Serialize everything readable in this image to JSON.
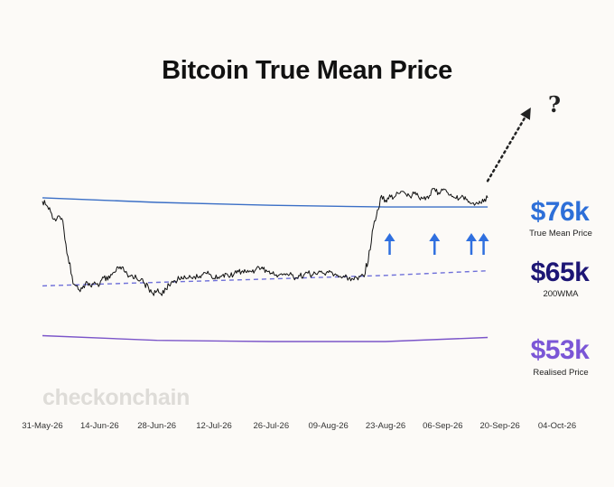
{
  "title": "Bitcoin True Mean Price",
  "watermark": "checkonchain",
  "colors": {
    "background": "#fcfaf7",
    "price": "#111111",
    "true_mean": "#3b6fc6",
    "wma200": "#6f70d9",
    "realised": "#7b55c9",
    "arrows": "#2f6fdf",
    "label_true_mean": "#2d6fd8",
    "label_wma": "#1d1675",
    "label_realised": "#7b56d6"
  },
  "labels": {
    "true_mean_value": "$76k",
    "true_mean_name": "True Mean Price",
    "wma_value": "$65k",
    "wma_name": "200WMA",
    "realised_value": "$53k",
    "realised_name": "Realised Price",
    "question": "?"
  },
  "x_ticks": [
    "31-May-26",
    "14-Jun-26",
    "28-Jun-26",
    "12-Jul-26",
    "26-Jul-26",
    "09-Aug-26",
    "23-Aug-26",
    "06-Sep-26",
    "20-Sep-26",
    "04-Oct-26"
  ],
  "chart_data": {
    "type": "line",
    "title": "Bitcoin True Mean Price",
    "x_range": [
      "2026-05-31",
      "2026-10-04"
    ],
    "y_range": [
      45000,
      98000
    ],
    "grid": false,
    "series": [
      {
        "name": "True Mean Price",
        "points": [
          [
            "2026-05-31",
            77600
          ],
          [
            "2026-06-28",
            76800
          ],
          [
            "2026-07-26",
            76300
          ],
          [
            "2026-08-23",
            76000
          ],
          [
            "2026-09-17",
            76000
          ]
        ]
      },
      {
        "name": "200WMA",
        "style": "dashed",
        "points": [
          [
            "2026-05-31",
            62400
          ],
          [
            "2026-06-28",
            63000
          ],
          [
            "2026-07-26",
            63600
          ],
          [
            "2026-08-23",
            64200
          ],
          [
            "2026-09-17",
            65000
          ]
        ]
      },
      {
        "name": "Realised Price",
        "points": [
          [
            "2026-05-31",
            53800
          ],
          [
            "2026-06-28",
            53000
          ],
          [
            "2026-07-26",
            52800
          ],
          [
            "2026-08-23",
            52800
          ],
          [
            "2026-09-17",
            53500
          ]
        ]
      },
      {
        "name": "Price",
        "points": [
          [
            "2026-05-31",
            77000
          ],
          [
            "2026-06-01",
            76300
          ],
          [
            "2026-06-02",
            75200
          ],
          [
            "2026-06-03",
            74000
          ],
          [
            "2026-06-04",
            74500
          ],
          [
            "2026-06-05",
            73600
          ],
          [
            "2026-06-06",
            68000
          ],
          [
            "2026-06-07",
            64500
          ],
          [
            "2026-06-08",
            62500
          ],
          [
            "2026-06-09",
            61700
          ],
          [
            "2026-06-10",
            62400
          ],
          [
            "2026-06-11",
            63000
          ],
          [
            "2026-06-12",
            62200
          ],
          [
            "2026-06-13",
            62800
          ],
          [
            "2026-06-14",
            62600
          ],
          [
            "2026-06-15",
            63800
          ],
          [
            "2026-06-16",
            63400
          ],
          [
            "2026-06-17",
            64300
          ],
          [
            "2026-06-18",
            64900
          ],
          [
            "2026-06-19",
            65700
          ],
          [
            "2026-06-20",
            64900
          ],
          [
            "2026-06-21",
            63900
          ],
          [
            "2026-06-22",
            64200
          ],
          [
            "2026-06-23",
            63800
          ],
          [
            "2026-06-24",
            63400
          ],
          [
            "2026-06-25",
            62800
          ],
          [
            "2026-06-26",
            62000
          ],
          [
            "2026-06-27",
            61100
          ],
          [
            "2026-06-28",
            61500
          ],
          [
            "2026-06-29",
            61000
          ],
          [
            "2026-06-30",
            62000
          ],
          [
            "2026-07-01",
            62500
          ],
          [
            "2026-07-02",
            63000
          ],
          [
            "2026-07-03",
            63300
          ],
          [
            "2026-07-04",
            64000
          ],
          [
            "2026-07-05",
            63800
          ],
          [
            "2026-07-06",
            64200
          ],
          [
            "2026-07-07",
            64000
          ],
          [
            "2026-07-08",
            63900
          ],
          [
            "2026-07-09",
            64300
          ],
          [
            "2026-07-10",
            64600
          ],
          [
            "2026-07-11",
            64400
          ],
          [
            "2026-07-12",
            63700
          ],
          [
            "2026-07-13",
            63900
          ],
          [
            "2026-07-14",
            64200
          ],
          [
            "2026-07-15",
            64500
          ],
          [
            "2026-07-16",
            64100
          ],
          [
            "2026-07-17",
            64600
          ],
          [
            "2026-07-18",
            64800
          ],
          [
            "2026-07-19",
            65000
          ],
          [
            "2026-07-20",
            64700
          ],
          [
            "2026-07-21",
            64900
          ],
          [
            "2026-07-22",
            65000
          ],
          [
            "2026-07-23",
            65600
          ],
          [
            "2026-07-24",
            65300
          ],
          [
            "2026-07-25",
            64900
          ],
          [
            "2026-07-26",
            64600
          ],
          [
            "2026-07-27",
            64200
          ],
          [
            "2026-07-28",
            64300
          ],
          [
            "2026-07-29",
            64400
          ],
          [
            "2026-07-30",
            64400
          ],
          [
            "2026-07-31",
            64300
          ],
          [
            "2026-08-01",
            63800
          ],
          [
            "2026-08-02",
            64100
          ],
          [
            "2026-08-03",
            64300
          ],
          [
            "2026-08-04",
            64600
          ],
          [
            "2026-08-05",
            64300
          ],
          [
            "2026-08-06",
            64400
          ],
          [
            "2026-08-07",
            64800
          ],
          [
            "2026-08-08",
            64500
          ],
          [
            "2026-08-09",
            64700
          ],
          [
            "2026-08-10",
            64600
          ],
          [
            "2026-08-11",
            64200
          ],
          [
            "2026-08-12",
            64000
          ],
          [
            "2026-08-13",
            63900
          ],
          [
            "2026-08-14",
            63700
          ],
          [
            "2026-08-15",
            63600
          ],
          [
            "2026-08-16",
            63800
          ],
          [
            "2026-08-17",
            64200
          ],
          [
            "2026-08-18",
            64500
          ],
          [
            "2026-08-19",
            68500
          ],
          [
            "2026-08-20",
            72500
          ],
          [
            "2026-08-21",
            75500
          ],
          [
            "2026-08-22",
            78000
          ],
          [
            "2026-08-23",
            77200
          ],
          [
            "2026-08-24",
            78100
          ],
          [
            "2026-08-25",
            77600
          ],
          [
            "2026-08-26",
            78400
          ],
          [
            "2026-08-27",
            78700
          ],
          [
            "2026-08-28",
            78200
          ],
          [
            "2026-08-29",
            77800
          ],
          [
            "2026-08-30",
            78300
          ],
          [
            "2026-08-31",
            77900
          ],
          [
            "2026-09-01",
            77500
          ],
          [
            "2026-09-02",
            77700
          ],
          [
            "2026-09-03",
            78000
          ],
          [
            "2026-09-04",
            79200
          ],
          [
            "2026-09-05",
            78500
          ],
          [
            "2026-09-06",
            78900
          ],
          [
            "2026-09-07",
            78600
          ],
          [
            "2026-09-08",
            78200
          ],
          [
            "2026-09-09",
            77600
          ],
          [
            "2026-09-10",
            77400
          ],
          [
            "2026-09-11",
            77800
          ],
          [
            "2026-09-12",
            77300
          ],
          [
            "2026-09-13",
            76600
          ],
          [
            "2026-09-14",
            76500
          ],
          [
            "2026-09-15",
            77000
          ],
          [
            "2026-09-16",
            76900
          ],
          [
            "2026-09-17",
            77600
          ]
        ]
      }
    ],
    "annotations": [
      {
        "type": "arrow_up",
        "date": "2026-08-24"
      },
      {
        "type": "arrow_up",
        "date": "2026-09-04"
      },
      {
        "type": "arrow_up",
        "date": "2026-09-13"
      },
      {
        "type": "arrow_up",
        "date": "2026-09-16"
      },
      {
        "type": "dotted_arrow",
        "from": [
          "2026-09-17",
          80500
        ],
        "to": [
          "2026-09-27",
          92500
        ],
        "label": "?"
      }
    ]
  }
}
